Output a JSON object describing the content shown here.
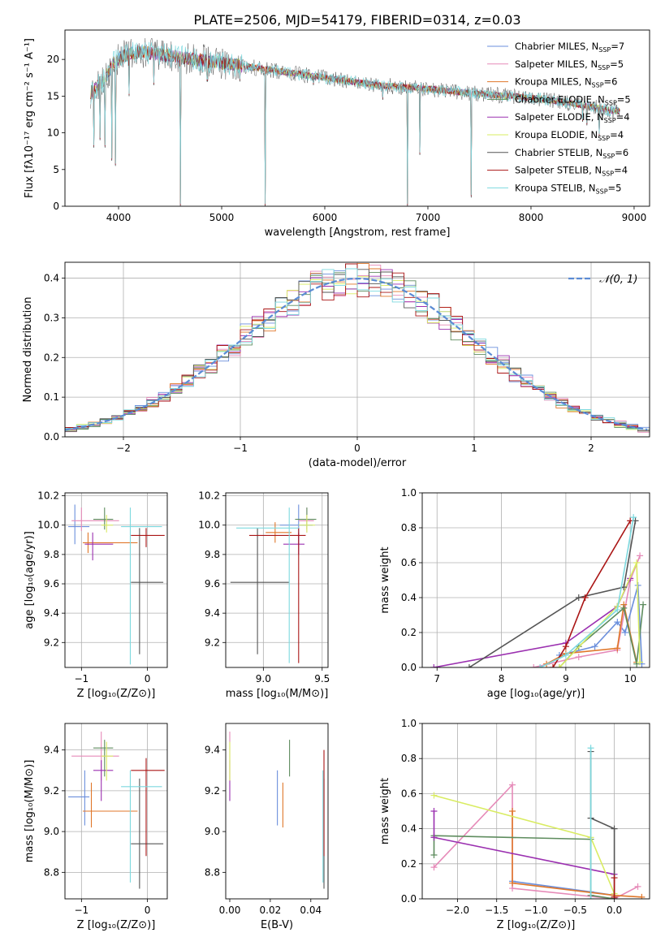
{
  "figure": {
    "title": "PLATE=2506, MJD=54179, FIBERID=0314, z=0.03"
  },
  "colors": {
    "ch_miles": "#6b8fdc",
    "sa_miles": "#e68ab8",
    "kr_miles": "#e0772a",
    "ch_elodie": "#5e8c5e",
    "sa_elodie": "#9b30b0",
    "kr_elodie": "#d9ec62",
    "ch_stelib": "#555555",
    "sa_stelib": "#aa1515",
    "kr_stelib": "#7dd9df",
    "gaussian": "#5b8bd4"
  },
  "chart_data": [
    {
      "id": "spectrum",
      "type": "line",
      "xlabel": "wavelength [Angstrom, rest frame]",
      "ylabel": "Flux [fλ10⁻¹⁷ erg cm⁻² s⁻¹ A⁻¹]",
      "xlim": [
        3480,
        9150
      ],
      "ylim": [
        0,
        24
      ],
      "xticks": [
        4000,
        5000,
        6000,
        7000,
        8000,
        9000
      ],
      "yticks": [
        0,
        5,
        10,
        15,
        20
      ],
      "grid": false,
      "legend_position": "top-right",
      "legend": [
        {
          "label": "Chabrier MILES, N",
          "sub": "SSP",
          "tail": "=7",
          "color": "ch_miles"
        },
        {
          "label": "Salpeter MILES, N",
          "sub": "SSP",
          "tail": "=5",
          "color": "sa_miles"
        },
        {
          "label": "Kroupa MILES, N",
          "sub": "SSP",
          "tail": "=6",
          "color": "kr_miles"
        },
        {
          "label": "Chabrier ELODIE, N",
          "sub": "SSP",
          "tail": "=5",
          "color": "ch_elodie"
        },
        {
          "label": "Salpeter ELODIE, N",
          "sub": "SSP",
          "tail": "=4",
          "color": "sa_elodie"
        },
        {
          "label": "Kroupa ELODIE, N",
          "sub": "SSP",
          "tail": "=4",
          "color": "kr_elodie"
        },
        {
          "label": "Chabrier STELIB, N",
          "sub": "SSP",
          "tail": "=6",
          "color": "ch_stelib"
        },
        {
          "label": "Salpeter STELIB, N",
          "sub": "SSP",
          "tail": "=4",
          "color": "sa_stelib"
        },
        {
          "label": "Kroupa STELIB, N",
          "sub": "SSP",
          "tail": "=5",
          "color": "kr_stelib"
        }
      ],
      "continuum": [
        [
          3730,
          15.5
        ],
        [
          3850,
          17
        ],
        [
          3950,
          19.5
        ],
        [
          4050,
          20.5
        ],
        [
          4200,
          21
        ],
        [
          4500,
          20.5
        ],
        [
          5000,
          19.5
        ],
        [
          5500,
          18.5
        ],
        [
          6000,
          17.5
        ],
        [
          6500,
          16.5
        ],
        [
          7000,
          16
        ],
        [
          7500,
          15.3
        ],
        [
          8000,
          14.8
        ],
        [
          8400,
          14
        ],
        [
          8800,
          13
        ]
      ],
      "features": [
        [
          3760,
          8
        ],
        [
          3820,
          9
        ],
        [
          3870,
          8
        ],
        [
          3933,
          6.2
        ],
        [
          3968,
          5.5
        ],
        [
          4102,
          15
        ],
        [
          4340,
          16.5
        ],
        [
          4600,
          0
        ],
        [
          4861,
          17
        ],
        [
          5175,
          17
        ],
        [
          5420,
          0
        ],
        [
          5890,
          16.5
        ],
        [
          6560,
          14.5
        ],
        [
          6800,
          0
        ],
        [
          6920,
          7
        ],
        [
          7420,
          1.2
        ],
        [
          8500,
          11.5
        ],
        [
          8542,
          11
        ],
        [
          8662,
          9.5
        ]
      ]
    },
    {
      "id": "residuals",
      "type": "step",
      "xlabel": "(data-model)/error",
      "ylabel": "Normed distribution",
      "xlim": [
        -2.5,
        2.5
      ],
      "ylim": [
        0,
        0.44
      ],
      "xticks": [
        -2,
        -1,
        0,
        1,
        2
      ],
      "yticks": [
        0,
        0.1,
        0.2,
        0.3,
        0.4
      ],
      "grid": true,
      "bin_width": 0.1,
      "legend": "𝒩(0, 1)",
      "legend_position": "top-right"
    },
    {
      "id": "age_vs_Z",
      "type": "errorbar",
      "xlabel": "Z [log₁₀(Z/Z⊙)]",
      "ylabel": "age  [log₁₀(age/yr)]",
      "xlim": [
        -1.25,
        0.3
      ],
      "ylim": [
        9.03,
        10.22
      ],
      "xticks": [
        -1,
        0
      ],
      "yticks": [
        9.2,
        9.4,
        9.6,
        9.8,
        10.0,
        10.2
      ],
      "grid": true,
      "points": [
        {
          "c": "ch_miles",
          "x": -1.1,
          "y": 9.99,
          "xlo": -1.2,
          "xhi": -0.88,
          "ylo": 9.87,
          "yhi": 10.14
        },
        {
          "c": "sa_miles",
          "x": -1.0,
          "y": 10.03,
          "xlo": -1.15,
          "xhi": -0.43,
          "ylo": 9.96,
          "yhi": 10.12
        },
        {
          "c": "kr_miles",
          "x": -0.9,
          "y": 9.88,
          "xlo": -0.98,
          "xhi": -0.15,
          "ylo": 9.81,
          "yhi": 9.95
        },
        {
          "c": "ch_elodie",
          "x": -0.65,
          "y": 10.04,
          "xlo": -0.82,
          "xhi": -0.52,
          "ylo": 9.97,
          "yhi": 10.12
        },
        {
          "c": "sa_elodie",
          "x": -0.83,
          "y": 9.87,
          "xlo": -0.95,
          "xhi": -0.52,
          "ylo": 9.76,
          "yhi": 9.95
        },
        {
          "c": "kr_elodie",
          "x": -0.62,
          "y": 10.0,
          "xlo": -0.7,
          "xhi": -0.52,
          "ylo": 9.95,
          "yhi": 10.07
        },
        {
          "c": "ch_stelib",
          "x": -0.12,
          "y": 9.61,
          "xlo": -0.25,
          "xhi": 0.24,
          "ylo": 9.12,
          "yhi": 9.98
        },
        {
          "c": "sa_stelib",
          "x": -0.02,
          "y": 9.93,
          "xlo": -0.25,
          "xhi": 0.26,
          "ylo": 9.85,
          "yhi": 9.98
        },
        {
          "c": "kr_stelib",
          "x": -0.26,
          "y": 9.99,
          "xlo": -0.4,
          "xhi": 0.22,
          "ylo": 9.05,
          "yhi": 10.12
        }
      ]
    },
    {
      "id": "age_vs_mass",
      "type": "errorbar",
      "xlabel": "mass [log₁₀(M/M⊙)]",
      "ylabel": "",
      "xlim": [
        8.68,
        9.55
      ],
      "ylim": [
        9.03,
        10.22
      ],
      "xticks": [
        9.0,
        9.5
      ],
      "yticks": [
        9.2,
        9.4,
        9.6,
        9.8,
        10.0,
        10.2
      ],
      "grid": true,
      "points": [
        {
          "c": "ch_miles",
          "x": 9.3,
          "y": 10.0,
          "xlo": 9.14,
          "xhi": 9.42,
          "ylo": 9.87,
          "yhi": 10.14
        },
        {
          "c": "sa_miles",
          "x": 9.37,
          "y": 10.03,
          "xlo": 9.3,
          "xhi": 9.43,
          "ylo": 9.95,
          "yhi": 10.12
        },
        {
          "c": "kr_miles",
          "x": 9.1,
          "y": 9.95,
          "xlo": 9.02,
          "xhi": 9.24,
          "ylo": 9.88,
          "yhi": 10.02
        },
        {
          "c": "ch_elodie",
          "x": 9.37,
          "y": 10.04,
          "xlo": 9.27,
          "xhi": 9.45,
          "ylo": 9.97,
          "yhi": 10.12
        },
        {
          "c": "sa_elodie",
          "x": 9.3,
          "y": 9.87,
          "xlo": 9.17,
          "xhi": 9.35,
          "ylo": 9.8,
          "yhi": 9.95
        },
        {
          "c": "kr_elodie",
          "x": 9.37,
          "y": 10.0,
          "xlo": 9.3,
          "xhi": 9.44,
          "ylo": 9.95,
          "yhi": 10.07
        },
        {
          "c": "ch_stelib",
          "x": 8.95,
          "y": 9.61,
          "xlo": 8.72,
          "xhi": 9.22,
          "ylo": 9.12,
          "yhi": 9.98
        },
        {
          "c": "sa_stelib",
          "x": 9.3,
          "y": 9.93,
          "xlo": 8.88,
          "xhi": 9.36,
          "ylo": 9.06,
          "yhi": 9.98
        },
        {
          "c": "kr_stelib",
          "x": 9.22,
          "y": 9.98,
          "xlo": 8.77,
          "xhi": 9.3,
          "ylo": 9.06,
          "yhi": 10.12
        }
      ]
    },
    {
      "id": "weight_vs_age",
      "type": "line",
      "xlabel": "age  [log₁₀(age/yr)]",
      "ylabel": "mass weight",
      "xlim": [
        6.77,
        10.3
      ],
      "ylim": [
        0,
        1.0
      ],
      "xticks": [
        7,
        8,
        9,
        10
      ],
      "yticks": [
        0,
        0.2,
        0.4,
        0.6,
        0.8,
        1.0
      ],
      "grid": true,
      "series": [
        {
          "c": "ch_miles",
          "x": [
            8.9,
            9.45,
            9.8,
            9.92,
            10.12,
            10.18
          ],
          "y": [
            0.07,
            0.12,
            0.26,
            0.2,
            0.47,
            0.02
          ]
        },
        {
          "c": "sa_miles",
          "x": [
            8.5,
            9.2,
            9.8,
            10.0,
            10.15
          ],
          "y": [
            0.0,
            0.06,
            0.1,
            0.5,
            0.64
          ]
        },
        {
          "c": "kr_miles",
          "x": [
            8.7,
            9.0,
            9.8,
            9.9,
            10.1
          ],
          "y": [
            0.02,
            0.08,
            0.11,
            0.36,
            0.03
          ]
        },
        {
          "c": "ch_elodie",
          "x": [
            8.9,
            9.2,
            9.9,
            10.1,
            10.2
          ],
          "y": [
            0.0,
            0.12,
            0.34,
            0.02,
            0.36
          ]
        },
        {
          "c": "sa_elodie",
          "x": [
            6.95,
            9.0,
            9.8,
            10.0
          ],
          "y": [
            0.0,
            0.14,
            0.35,
            0.51
          ]
        },
        {
          "c": "kr_elodie",
          "x": [
            8.9,
            9.8,
            10.1,
            10.15
          ],
          "y": [
            0.0,
            0.35,
            0.6,
            0.03
          ]
        },
        {
          "c": "ch_stelib",
          "x": [
            7.5,
            9.2,
            9.9,
            10.08
          ],
          "y": [
            0.0,
            0.4,
            0.46,
            0.84
          ]
        },
        {
          "c": "sa_stelib",
          "x": [
            8.8,
            9.0,
            9.3,
            10.0
          ],
          "y": [
            0.0,
            0.12,
            0.4,
            0.84
          ]
        },
        {
          "c": "kr_stelib",
          "x": [
            8.6,
            9.0,
            9.8,
            10.05
          ],
          "y": [
            0.0,
            0.07,
            0.33,
            0.86
          ]
        }
      ]
    },
    {
      "id": "mass_vs_Z",
      "type": "errorbar",
      "xlabel": "Z [log₁₀(Z/Z⊙)]",
      "ylabel": "mass [log₁₀(M/M⊙)]",
      "xlim": [
        -1.25,
        0.3
      ],
      "ylim": [
        8.67,
        9.53
      ],
      "xticks": [
        -1,
        0
      ],
      "yticks": [
        8.8,
        9.0,
        9.2,
        9.4
      ],
      "grid": true,
      "points": [
        {
          "c": "ch_miles",
          "x": -0.95,
          "y": 9.17,
          "xlo": -1.2,
          "xhi": -0.88,
          "ylo": 9.03,
          "yhi": 9.3
        },
        {
          "c": "sa_miles",
          "x": -0.7,
          "y": 9.37,
          "xlo": -1.15,
          "xhi": -0.43,
          "ylo": 9.25,
          "yhi": 9.49
        },
        {
          "c": "kr_miles",
          "x": -0.85,
          "y": 9.1,
          "xlo": -0.98,
          "xhi": -0.15,
          "ylo": 9.02,
          "yhi": 9.24
        },
        {
          "c": "ch_elodie",
          "x": -0.65,
          "y": 9.41,
          "xlo": -0.82,
          "xhi": -0.52,
          "ylo": 9.27,
          "yhi": 9.45
        },
        {
          "c": "sa_elodie",
          "x": -0.7,
          "y": 9.3,
          "xlo": -0.82,
          "xhi": -0.52,
          "ylo": 9.15,
          "yhi": 9.35
        },
        {
          "c": "kr_elodie",
          "x": -0.62,
          "y": 9.37,
          "xlo": -0.7,
          "xhi": -0.52,
          "ylo": 9.25,
          "yhi": 9.44
        },
        {
          "c": "ch_stelib",
          "x": -0.12,
          "y": 8.94,
          "xlo": -0.25,
          "xhi": 0.24,
          "ylo": 8.72,
          "yhi": 9.26
        },
        {
          "c": "sa_stelib",
          "x": -0.02,
          "y": 9.3,
          "xlo": -0.25,
          "xhi": 0.26,
          "ylo": 8.88,
          "yhi": 9.36
        },
        {
          "c": "kr_stelib",
          "x": -0.26,
          "y": 9.22,
          "xlo": -0.4,
          "xhi": 0.22,
          "ylo": 8.75,
          "yhi": 9.3
        }
      ]
    },
    {
      "id": "mass_vs_ebv",
      "type": "errorbar",
      "xlabel": "E(B-V)",
      "ylabel": "",
      "xlim": [
        -0.002,
        0.0485
      ],
      "ylim": [
        8.67,
        9.53
      ],
      "xticks": [
        0.0,
        0.02,
        0.04
      ],
      "yticks": [
        8.8,
        9.0,
        9.2,
        9.4
      ],
      "grid": false,
      "points": [
        {
          "c": "ch_miles",
          "x": 0.0235,
          "y": 9.17,
          "ylo": 9.03,
          "yhi": 9.3
        },
        {
          "c": "sa_miles",
          "x": 0.0,
          "y": 9.37,
          "ylo": 9.25,
          "yhi": 9.49
        },
        {
          "c": "kr_miles",
          "x": 0.0262,
          "y": 9.1,
          "ylo": 9.02,
          "yhi": 9.24
        },
        {
          "c": "ch_elodie",
          "x": 0.0295,
          "y": 9.41,
          "ylo": 9.27,
          "yhi": 9.45
        },
        {
          "c": "sa_elodie",
          "x": 0.0,
          "y": 9.3,
          "ylo": 9.15,
          "yhi": 9.35
        },
        {
          "c": "kr_elodie",
          "x": 0.0,
          "y": 9.37,
          "ylo": 9.25,
          "yhi": 9.44
        },
        {
          "c": "ch_stelib",
          "x": 0.0465,
          "y": 8.94,
          "ylo": 8.72,
          "yhi": 9.26
        },
        {
          "c": "sa_stelib",
          "x": 0.0465,
          "y": 9.3,
          "ylo": 8.88,
          "yhi": 9.4
        },
        {
          "c": "kr_stelib",
          "x": 0.046,
          "y": 9.22,
          "ylo": 8.75,
          "yhi": 9.3
        }
      ]
    },
    {
      "id": "weight_vs_Z",
      "type": "line",
      "xlabel": "Z [log₁₀(Z/Z⊙)]",
      "ylabel": "mass weight",
      "xlim": [
        -2.45,
        0.45
      ],
      "ylim": [
        0,
        1.0
      ],
      "xticks": [
        -2.0,
        -1.5,
        -1.0,
        -0.5,
        0.0
      ],
      "yticks": [
        0,
        0.2,
        0.4,
        0.6,
        0.8,
        1.0
      ],
      "grid": true,
      "series": [
        {
          "c": "ch_miles",
          "x": [
            -1.3,
            -0.3,
            0.0
          ],
          "y": [
            0.1,
            0.04,
            0.02
          ]
        },
        {
          "c": "sa_miles",
          "x": [
            -2.3,
            -1.3,
            -1.3,
            0.0,
            0.3
          ],
          "y": [
            0.18,
            0.65,
            0.06,
            0.0,
            0.07
          ]
        },
        {
          "c": "kr_miles",
          "x": [
            -1.3,
            -1.3,
            0.0,
            0.35
          ],
          "y": [
            0.5,
            0.09,
            0.02,
            0.01
          ]
        },
        {
          "c": "ch_elodie",
          "x": [
            -2.3,
            -2.3,
            -0.3,
            -0.3,
            0.0
          ],
          "y": [
            0.25,
            0.36,
            0.34,
            0.02,
            0.0
          ]
        },
        {
          "c": "sa_elodie",
          "x": [
            -2.3,
            -2.3,
            0.0
          ],
          "y": [
            0.5,
            0.35,
            0.14
          ]
        },
        {
          "c": "kr_elodie",
          "x": [
            -2.3,
            -0.3,
            0.0
          ],
          "y": [
            0.59,
            0.35,
            0.03
          ]
        },
        {
          "c": "ch_stelib",
          "x": [
            -0.3,
            -0.3,
            0.0,
            0.0
          ],
          "y": [
            0.84,
            0.46,
            0.4,
            0.0
          ]
        },
        {
          "c": "sa_stelib",
          "x": [
            0.0,
            0.0
          ],
          "y": [
            0.12,
            0.01
          ]
        },
        {
          "c": "kr_stelib",
          "x": [
            -0.3,
            -0.3
          ],
          "y": [
            0.86,
            0.0
          ]
        }
      ]
    }
  ]
}
